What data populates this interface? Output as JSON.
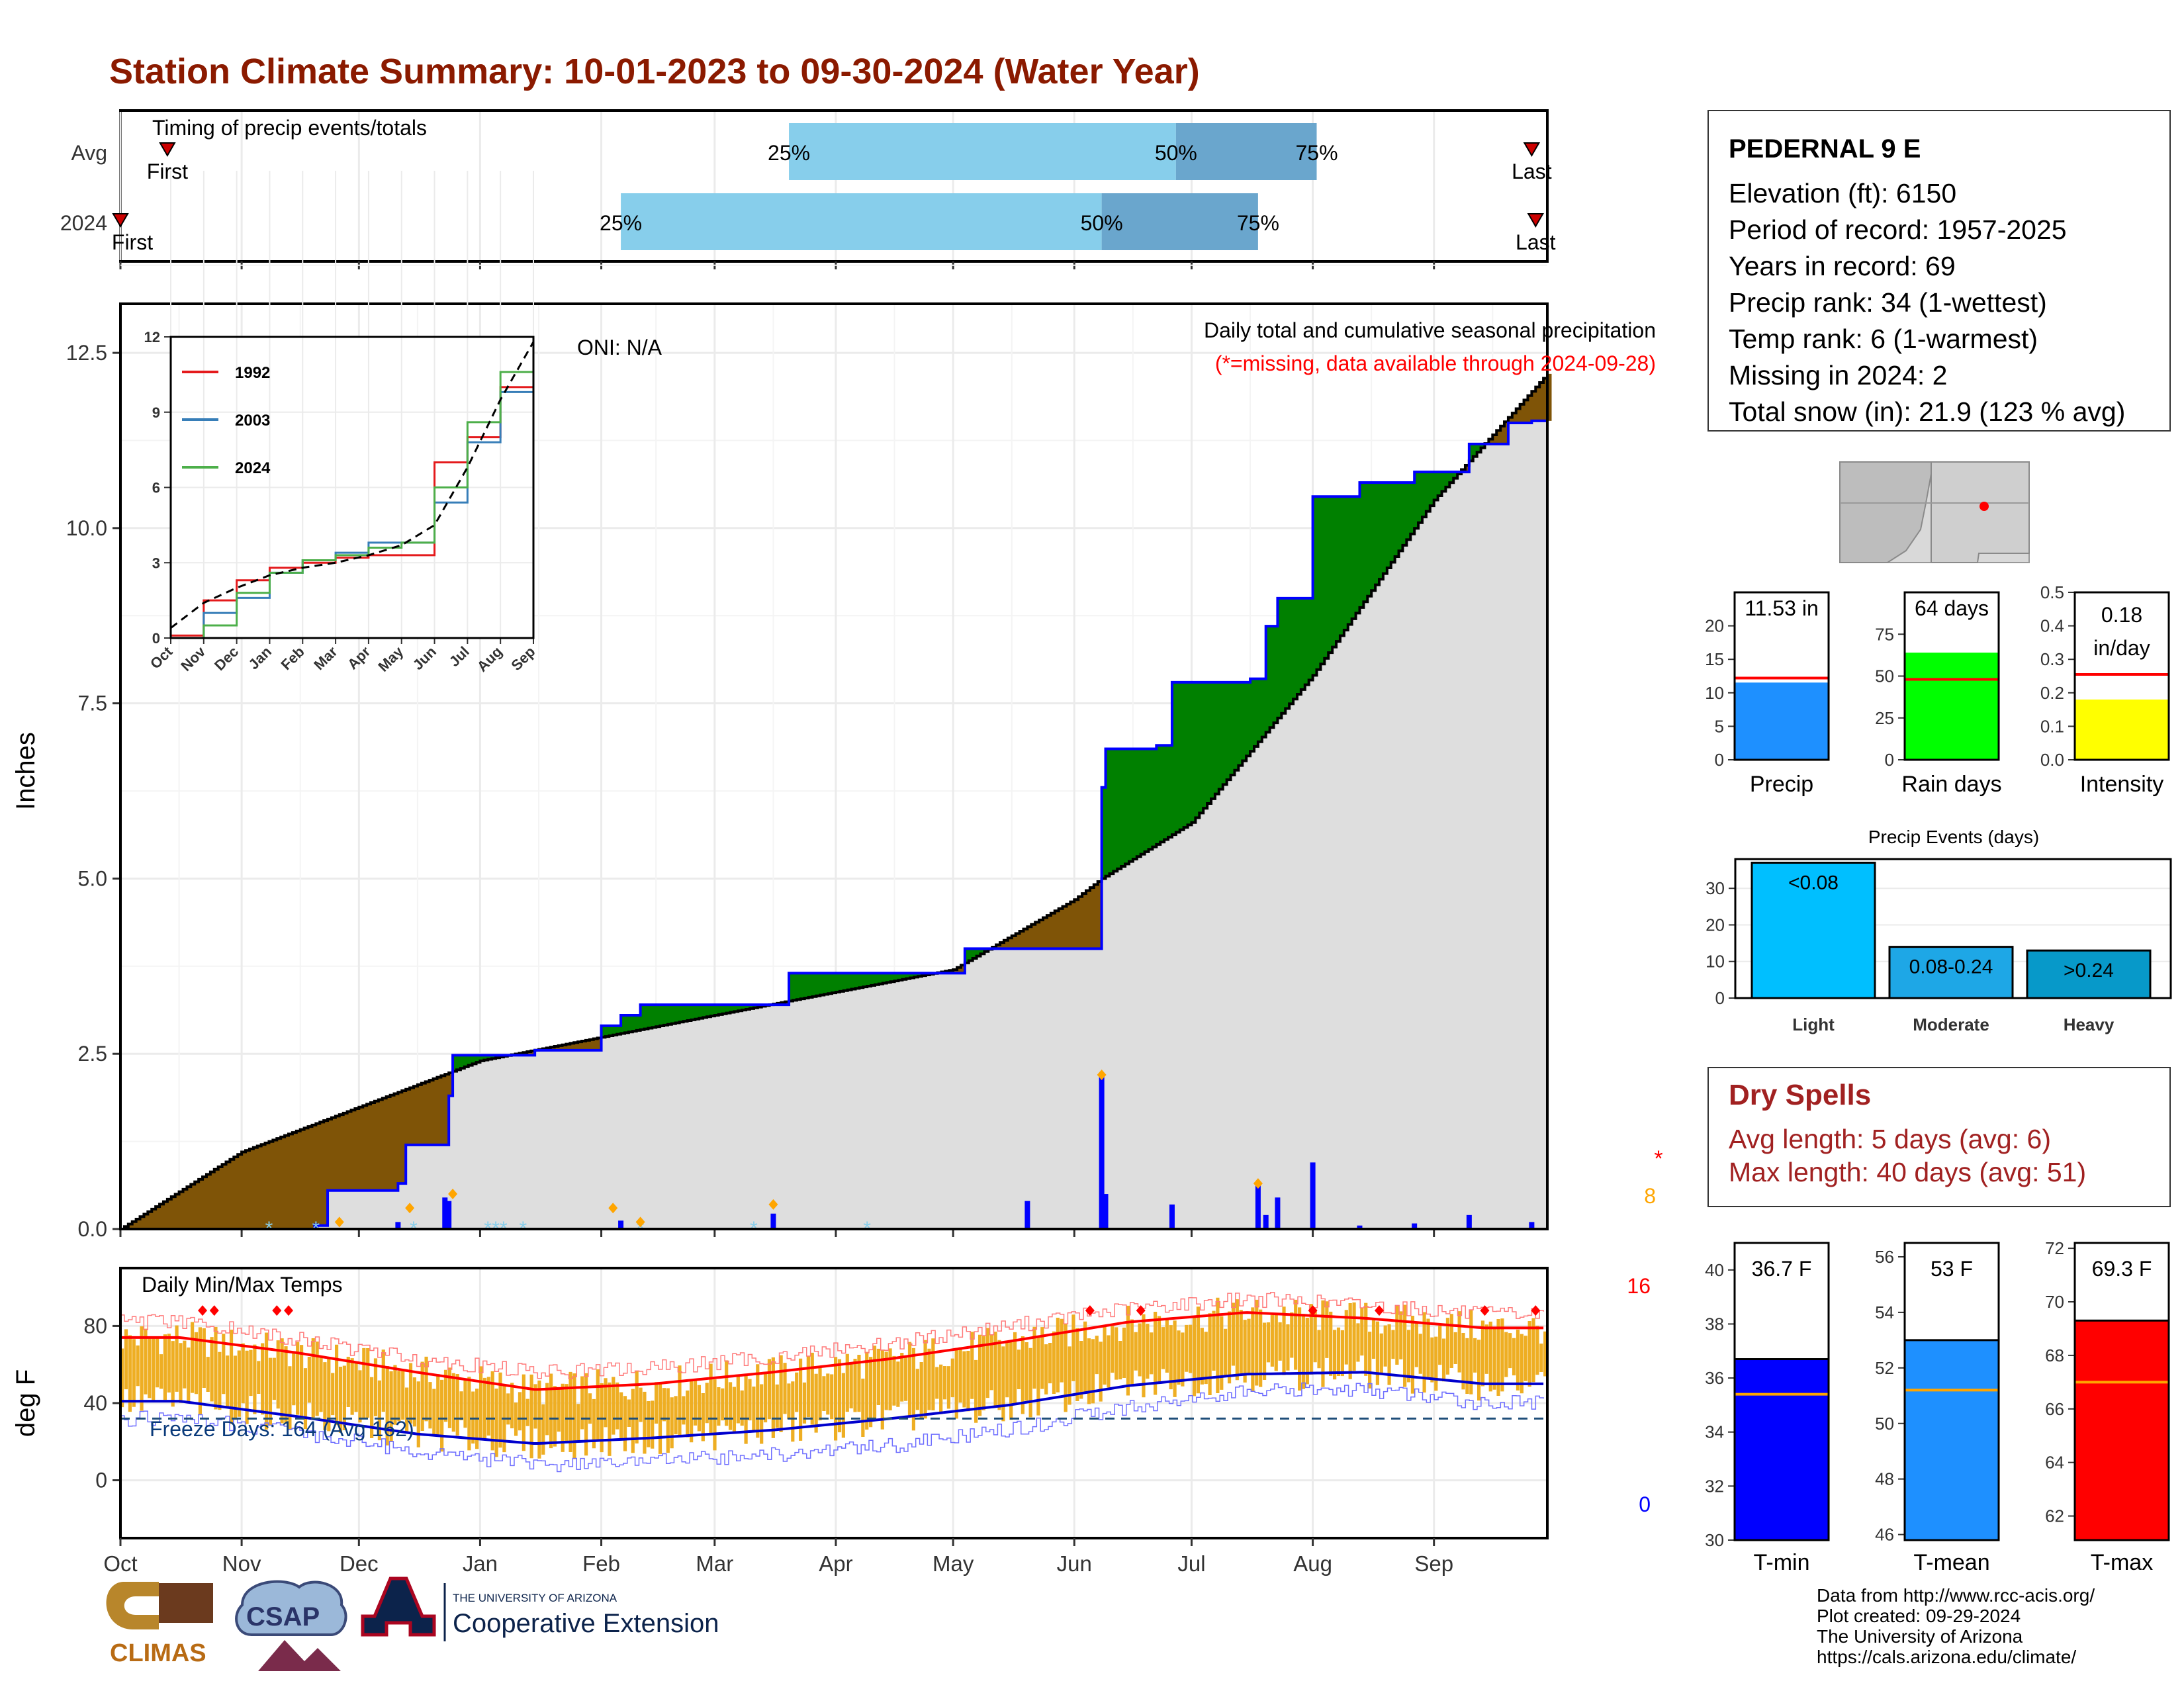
{
  "title": "Station Climate Summary: 10-01-2023 to 09-30-2024 (Water Year)",
  "timing_panel": {
    "label": "Timing of precip events/totals",
    "rows": [
      {
        "name": "Avg",
        "q25": "25%",
        "q50": "50%",
        "q75": "75%",
        "first": "First",
        "last": "Last"
      },
      {
        "name": "2024",
        "q25": "25%",
        "q50": "50%",
        "q75": "75%",
        "first": "First",
        "last": "Last"
      }
    ],
    "avg_dates": {
      "first": "2023-10-13",
      "q25": "2024-03-20",
      "q50": "2024-06-27",
      "q75": "2024-08-02",
      "last": "2024-09-26"
    },
    "y2024_dates": {
      "first": "2023-10-01",
      "q25": "2024-02-06",
      "q50": "2024-06-08",
      "q75": "2024-07-18",
      "last": "2024-09-27"
    }
  },
  "precip_panel": {
    "ylabel": "Inches",
    "yticks": [
      "0.0",
      "2.5",
      "5.0",
      "7.5",
      "10.0",
      "12.5"
    ],
    "oni": "ONI: N/A",
    "caption": "Daily total and cumulative seasonal precipitation",
    "missing_note": "(*=missing, data available through 2024-09-28)",
    "missing_count": "8"
  },
  "inset": {
    "yticks": [
      "0",
      "3",
      "6",
      "9",
      "12"
    ],
    "xticks": [
      "Oct",
      "Nov",
      "Dec",
      "Jan",
      "Feb",
      "Mar",
      "Apr",
      "May",
      "Jun",
      "Jul",
      "Aug",
      "Sep"
    ],
    "legend": [
      {
        "name": "1992",
        "color": "#e41a1c"
      },
      {
        "name": "2003",
        "color": "#377eb8"
      },
      {
        "name": "2024",
        "color": "#4daf4a"
      }
    ]
  },
  "temp_panel": {
    "ylabel": "deg F",
    "label": "Daily Min/Max Temps",
    "yticks": [
      "0",
      "40",
      "80"
    ],
    "freeze_text": "Freeze Days: 164 (Avg 162)",
    "record_high_count": "16",
    "record_low_count": "0"
  },
  "x_axis": {
    "months": [
      "Oct",
      "Nov",
      "Dec",
      "Jan",
      "Feb",
      "Mar",
      "Apr",
      "May",
      "Jun",
      "Jul",
      "Aug",
      "Sep"
    ]
  },
  "station": {
    "name": "PEDERNAL 9 E",
    "lines": [
      "Elevation (ft): 6150",
      "Period of record: 1957-2025",
      "Years in record: 69",
      "Precip rank: 34 (1-wettest)",
      "Temp rank: 6 (1-warmest)",
      "Missing in 2024: 2",
      "Total snow (in): 21.9 (123 % avg)"
    ]
  },
  "mini_bars": [
    {
      "label": "Precip",
      "value_text": "11.53 in",
      "value": 11.53,
      "avg": 12.2,
      "ymax": 25,
      "yticks": [
        "0",
        "5",
        "10",
        "15",
        "20"
      ],
      "color": "#1e90ff"
    },
    {
      "label": "Rain days",
      "value_text": "64 days",
      "value": 64,
      "avg": 48,
      "ymax": 100,
      "yticks": [
        "0",
        "25",
        "50",
        "75"
      ],
      "color": "#00ff00"
    },
    {
      "label": "Intensity",
      "value_text": "0.18 in/day",
      "value": 0.18,
      "avg": 0.255,
      "ymax": 0.5,
      "yticks": [
        "0.0",
        "0.1",
        "0.2",
        "0.3",
        "0.4",
        "0.5"
      ],
      "color": "#ffff00"
    }
  ],
  "events": {
    "title": "Precip Events (days)",
    "yticks": [
      "0",
      "10",
      "20",
      "30"
    ],
    "bars": [
      {
        "category": "Light",
        "label": "<0.08",
        "value": 37,
        "color": "#00bfff"
      },
      {
        "category": "Moderate",
        "label": "0.08-0.24",
        "value": 14,
        "color": "#1ea7e6"
      },
      {
        "category": "Heavy",
        "label": ">0.24",
        "value": 13,
        "color": "#0799c9"
      }
    ]
  },
  "dry_spells": {
    "title": "Dry Spells",
    "avg_line": "Avg length: 5 days (avg: 6)",
    "max_line": "Max length: 40 days (avg: 51)"
  },
  "temp_bars": [
    {
      "label": "T-min",
      "value_text": "36.7 F",
      "value": 36.7,
      "avg": 35.4,
      "ymin": 30,
      "ymax": 41,
      "yticks": [
        "30",
        "32",
        "34",
        "36",
        "38",
        "40"
      ],
      "color": "#0000ff"
    },
    {
      "label": "T-mean",
      "value_text": "53 F",
      "value": 53.0,
      "avg": 51.2,
      "ymin": 45.8,
      "ymax": 56.5,
      "yticks": [
        "46",
        "48",
        "50",
        "52",
        "54",
        "56"
      ],
      "color": "#1e90ff"
    },
    {
      "label": "T-max",
      "value_text": "69.3 F",
      "value": 69.3,
      "avg": 67.0,
      "ymin": 61.1,
      "ymax": 72.2,
      "yticks": [
        "62",
        "64",
        "66",
        "68",
        "70",
        "72"
      ],
      "color": "#ff0000"
    }
  ],
  "credits": [
    "Data from http://www.rcc-acis.org/",
    "Plot created: 09-29-2024",
    "The University of Arizona",
    "https://cals.arizona.edu/climate/"
  ],
  "logos": {
    "climas": "CLIMAS",
    "csap": "CSAP",
    "university": "THE UNIVERSITY OF ARIZONA",
    "extension": "Cooperative Extension"
  },
  "chart_data": [
    {
      "type": "area",
      "title": "Daily total and cumulative seasonal precipitation",
      "ylabel": "Inches",
      "ylim": [
        0,
        13.2
      ],
      "x_range": [
        "2023-10-01",
        "2024-09-30"
      ],
      "series": [
        {
          "name": "",
          "x": [
            "2023-10-01",
            "2023-11-20",
            "2023-11-23",
            "2023-12-11",
            "2023-12-13",
            "2023-12-24",
            "2023-12-25",
            "2024-01-15",
            "2024-02-01",
            "2024-02-06",
            "2024-02-11",
            "2024-02-17",
            "2024-03-20",
            "2024-04-20",
            "2024-05-04",
            "2024-06-04",
            "2024-06-08",
            "2024-06-09",
            "2024-06-22",
            "2024-06-26",
            "2024-07-16",
            "2024-07-20",
            "2024-07-23",
            "2024-08-01",
            "2024-08-13",
            "2024-08-27",
            "2024-09-10",
            "2024-09-20",
            "2024-09-26"
          ],
          "values": [
            0.0,
            0.05,
            0.55,
            0.65,
            1.2,
            1.9,
            2.48,
            2.55,
            2.9,
            3.05,
            3.2,
            3.2,
            3.65,
            3.65,
            4.0,
            4.0,
            6.3,
            6.85,
            6.9,
            7.8,
            7.85,
            8.6,
            9.0,
            10.45,
            10.65,
            10.8,
            11.2,
            11.5,
            11.53
          ]
        },
        {
          "name": "",
          "x": [
            "2023-10-01",
            "2023-11-01",
            "2024-01-01",
            "2024-03-01",
            "2024-05-01",
            "2024-06-01",
            "2024-06-08",
            "2024-07-01",
            "2024-08-01",
            "2024-09-01",
            "2024-09-30"
          ],
          "values": [
            0.0,
            1.1,
            2.4,
            3.05,
            3.7,
            4.7,
            5.0,
            5.8,
            7.9,
            10.4,
            12.2
          ]
        }
      ],
      "daily_precip": {
        "x": [
          "2023-11-20",
          "2023-12-11",
          "2023-12-23",
          "2023-12-24",
          "2024-02-06",
          "2024-03-16",
          "2024-05-20",
          "2024-06-08",
          "2024-06-09",
          "2024-06-26",
          "2024-07-18",
          "2024-07-20",
          "2024-07-23",
          "2024-08-01",
          "2024-08-13",
          "2024-08-27",
          "2024-09-10",
          "2024-09-26"
        ],
        "values": [
          0.08,
          0.1,
          0.45,
          0.4,
          0.12,
          0.22,
          0.4,
          2.2,
          0.5,
          0.35,
          0.62,
          0.2,
          0.45,
          0.95,
          0.05,
          0.08,
          0.2,
          0.1
        ]
      }
    },
    {
      "type": "line",
      "title": "",
      "x": [
        "Oct",
        "Nov",
        "Dec",
        "Jan",
        "Feb",
        "Mar",
        "Apr",
        "May",
        "Jun",
        "Jul",
        "Aug",
        "Sep"
      ],
      "ylim": [
        0,
        12
      ],
      "series": [
        {
          "name": "1992",
          "values": [
            0.1,
            1.5,
            2.3,
            2.8,
            3.0,
            3.2,
            3.3,
            3.3,
            7.0,
            8.0,
            10.0,
            11.6
          ]
        },
        {
          "name": "2003",
          "values": [
            0.0,
            1.0,
            1.6,
            2.6,
            3.1,
            3.4,
            3.8,
            3.8,
            5.4,
            7.8,
            9.8,
            11.2
          ]
        },
        {
          "name": "2024",
          "values": [
            0.0,
            0.5,
            1.8,
            2.6,
            3.1,
            3.3,
            3.6,
            3.8,
            6.0,
            8.6,
            10.6,
            11.5
          ]
        },
        {
          "name": "",
          "values": [
            0.4,
            1.4,
            2.0,
            2.5,
            2.8,
            3.0,
            3.3,
            3.7,
            4.5,
            6.8,
            9.5,
            11.8
          ]
        }
      ]
    },
    {
      "type": "line",
      "title": "Daily Min/Max Temps",
      "ylabel": "deg F",
      "ylim": [
        -30,
        110
      ],
      "x": [
        "Oct",
        "Nov",
        "Dec",
        "Jan",
        "Feb",
        "Mar",
        "Apr",
        "May",
        "Jun",
        "Jul",
        "Aug",
        "Sep"
      ],
      "series": [
        {
          "name": "",
          "values": [
            74,
            66,
            56,
            47,
            50,
            56,
            63,
            72,
            82,
            87,
            84,
            79
          ]
        },
        {
          "name": "",
          "values": [
            41,
            33,
            24,
            19,
            22,
            26,
            32,
            39,
            49,
            55,
            56,
            50
          ]
        },
        {
          "name": "",
          "values": [
            82,
            73,
            63,
            56,
            58,
            64,
            71,
            80,
            89,
            94,
            91,
            86
          ]
        },
        {
          "name": "",
          "values": [
            32,
            25,
            15,
            8,
            10,
            13,
            18,
            26,
            38,
            46,
            47,
            40
          ]
        }
      ],
      "freeze_line": 32
    }
  ]
}
